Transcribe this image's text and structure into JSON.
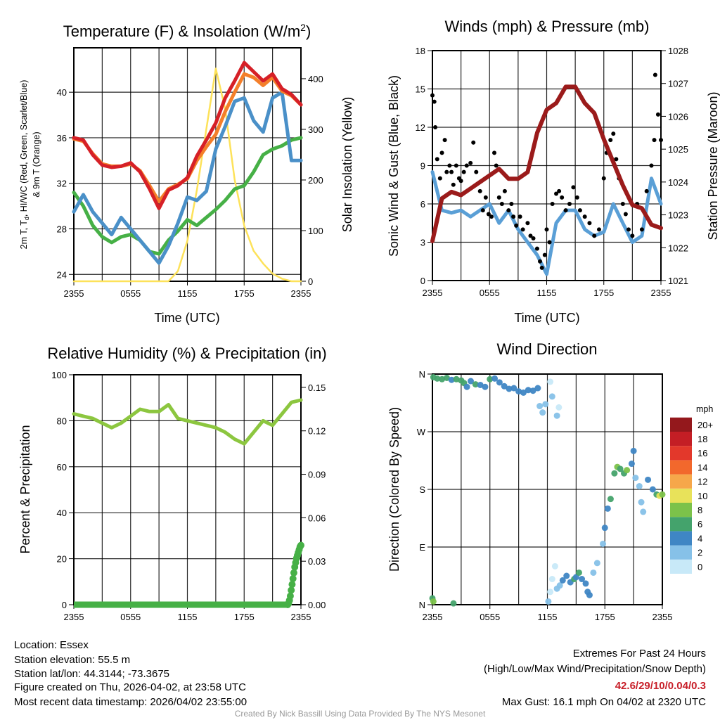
{
  "footer": {
    "location": "Location: Essex",
    "elevation": "Station elevation: 55.5 m",
    "latlon": "Station lat/lon: 44.3144; -73.3675",
    "created": "Figure created on Thu, 2026-04-02, at 23:58 UTC",
    "recent": "Most recent data timestamp: 2026/04/02 23:55:00",
    "extremes_title": "Extremes For Past 24 Hours",
    "extremes_subtitle": "(High/Low/Max Wind/Precipitation/Snow Depth)",
    "extremes_values": "42.6/29/10/0.04/0.3",
    "max_gust": "Max Gust: 16.1 mph On 04/02 at 2320 UTC",
    "credit": "Created By Nick Bassill Using Data Provided By The NYS Mesonet"
  },
  "colors": {
    "temp2m": "#d62027",
    "temp9m": "#f47f2a",
    "dewpoint": "#46b046",
    "hiwc": "#4a90c8",
    "solar": "#fde25a",
    "wind": "#5a9fd6",
    "gust": "#000000",
    "pressure": "#9b1b1b",
    "rh": "#8cc63f",
    "precip": "#46b046"
  },
  "chart_data": [
    {
      "type": "line",
      "title": "Temperature (F) & Insolation (W/m",
      "title_sup": "2",
      "title_end": ")",
      "xlabel": "Time (UTC)",
      "ylabel_line1_a": "2m T, T",
      "ylabel_line1_sub": "d",
      "ylabel_line1_b": ", HI/WC (Red, Green, Scarlet/Blue)",
      "ylabel_line2": "& 9m T (Orange)",
      "ylabel_right": "Solar Insolation (Yellow)",
      "x_hours": [
        0,
        1,
        2,
        3,
        4,
        5,
        6,
        7,
        8,
        9,
        10,
        11,
        12,
        13,
        14,
        15,
        16,
        17,
        18,
        19,
        20,
        21,
        22,
        23,
        24
      ],
      "x_tick_labels": [
        "2355",
        "0555",
        "1155",
        "1755",
        "2355"
      ],
      "ylim": [
        23.4,
        43.9
      ],
      "y_ticks": [
        24,
        28,
        32,
        36,
        40
      ],
      "ylim_right": [
        0,
        461
      ],
      "y_ticks_right": [
        0,
        100,
        200,
        300,
        400
      ],
      "series": [
        {
          "name": "2m T",
          "color_key": "temp2m",
          "axis": "left",
          "values": [
            36,
            35.8,
            34.5,
            33.6,
            33.4,
            33.5,
            33.8,
            33,
            31.5,
            29.8,
            31.4,
            31.8,
            32.5,
            34.4,
            35.8,
            37.3,
            39.5,
            41,
            42.6,
            41.8,
            41,
            41.6,
            40.3,
            39.8,
            38.9
          ]
        },
        {
          "name": "9m T",
          "color_key": "temp9m",
          "axis": "left",
          "values": [
            35.9,
            35.7,
            34.6,
            33.7,
            33.5,
            33.5,
            33.7,
            33.1,
            31.8,
            30.4,
            31.5,
            31.9,
            32.4,
            34,
            35.2,
            36.3,
            38.3,
            40,
            41.6,
            41.3,
            40.6,
            41.3,
            40.1,
            39.7,
            38.9
          ]
        },
        {
          "name": "HI/WC",
          "color_key": "hiwc",
          "axis": "left",
          "values": [
            29.5,
            31,
            29.5,
            28.5,
            27.5,
            29,
            28,
            27,
            26,
            25,
            26.5,
            28.5,
            30.8,
            30.5,
            31.3,
            35,
            37,
            39.2,
            39.5,
            37.5,
            36.5,
            39.5,
            40,
            34,
            34
          ]
        },
        {
          "name": "Td",
          "color_key": "dewpoint",
          "axis": "left",
          "values": [
            31.2,
            30,
            28.3,
            27.3,
            26.8,
            27.3,
            27.5,
            27,
            26,
            25.8,
            27,
            27.8,
            28.8,
            28.3,
            29,
            29.7,
            30.5,
            31.5,
            31.8,
            33,
            34.5,
            35,
            35.3,
            35.8,
            36
          ]
        },
        {
          "name": "Solar",
          "color_key": "solar",
          "axis": "right",
          "values": [
            0,
            0,
            0,
            0,
            0,
            0,
            0,
            0,
            0,
            0,
            0,
            20,
            80,
            180,
            300,
            420,
            340,
            200,
            110,
            60,
            35,
            15,
            5,
            0,
            0
          ]
        }
      ]
    },
    {
      "type": "line",
      "title": "Winds (mph) & Pressure (mb)",
      "xlabel": "Time (UTC)",
      "ylabel": "Sonic Wind & Gust (Blue, Black)",
      "ylabel_right": "Station Pressure (Maroon)",
      "x_hours": [
        0,
        1,
        2,
        3,
        4,
        5,
        6,
        7,
        8,
        9,
        10,
        11,
        12,
        13,
        14,
        15,
        16,
        17,
        18,
        19,
        20,
        21,
        22,
        23,
        24
      ],
      "x_tick_labels": [
        "2355",
        "0555",
        "1155",
        "1755",
        "2355"
      ],
      "ylim": [
        0,
        18
      ],
      "y_ticks": [
        0,
        3,
        6,
        9,
        12,
        15,
        18
      ],
      "ylim_right": [
        1021,
        1028
      ],
      "y_ticks_right": [
        1021,
        1022,
        1023,
        1024,
        1025,
        1026,
        1027,
        1028
      ],
      "series": [
        {
          "name": "Sonic Wind",
          "color_key": "wind",
          "axis": "left",
          "values": [
            8.5,
            5.5,
            5.3,
            5.5,
            5,
            5.5,
            6,
            4.5,
            5.5,
            4,
            3,
            2,
            0.5,
            4.5,
            5.5,
            5.5,
            4,
            3.5,
            3.8,
            6,
            4.5,
            3,
            3.5,
            8,
            6
          ]
        },
        {
          "name": "Pressure",
          "color_key": "pressure",
          "axis": "right",
          "values": [
            1022.2,
            1023.5,
            1023.7,
            1023.6,
            1023.8,
            1024.0,
            1024.2,
            1024.4,
            1024.1,
            1024.1,
            1024.3,
            1025.5,
            1026.2,
            1026.4,
            1026.9,
            1026.9,
            1026.4,
            1026.1,
            1025.3,
            1024.6,
            1023.9,
            1023.3,
            1023.2,
            1022.7,
            1022.6
          ]
        }
      ],
      "gusts": [
        [
          0,
          14.5
        ],
        [
          0.2,
          14
        ],
        [
          0.3,
          12
        ],
        [
          0.5,
          9.5
        ],
        [
          0.8,
          8
        ],
        [
          1,
          10
        ],
        [
          1.3,
          11
        ],
        [
          1.5,
          8.5
        ],
        [
          1.8,
          9
        ],
        [
          2,
          8.5
        ],
        [
          2.2,
          7.5
        ],
        [
          2.5,
          9
        ],
        [
          2.8,
          8
        ],
        [
          3,
          7.8
        ],
        [
          3.3,
          8.5
        ],
        [
          3.6,
          9
        ],
        [
          4,
          9.2
        ],
        [
          4.3,
          10.8
        ],
        [
          4.6,
          8.5
        ],
        [
          5,
          7
        ],
        [
          5.3,
          5.5
        ],
        [
          5.6,
          6.5
        ],
        [
          5.9,
          5.2
        ],
        [
          6.2,
          5
        ],
        [
          6.5,
          10
        ],
        [
          6.7,
          9
        ],
        [
          7,
          6.5
        ],
        [
          7.3,
          6
        ],
        [
          7.6,
          7
        ],
        [
          8,
          5.5
        ],
        [
          8.3,
          6
        ],
        [
          8.5,
          5
        ],
        [
          8.8,
          4.3
        ],
        [
          9.2,
          5
        ],
        [
          9.5,
          4
        ],
        [
          10,
          4.5
        ],
        [
          10.3,
          3.5
        ],
        [
          10.6,
          3.3
        ],
        [
          11,
          2.5
        ],
        [
          11.3,
          1.5
        ],
        [
          11.5,
          1
        ],
        [
          11.8,
          2
        ],
        [
          12,
          4
        ],
        [
          12.3,
          3
        ],
        [
          12.6,
          6
        ],
        [
          13,
          6.8
        ],
        [
          13.3,
          7
        ],
        [
          13.6,
          6.5
        ],
        [
          14,
          5.5
        ],
        [
          14.4,
          6
        ],
        [
          14.8,
          7.3
        ],
        [
          15.2,
          6.5
        ],
        [
          15.5,
          5.5
        ],
        [
          16,
          5
        ],
        [
          16.5,
          4.5
        ],
        [
          17,
          3.5
        ],
        [
          17.5,
          4
        ],
        [
          18,
          8
        ],
        [
          18.3,
          10
        ],
        [
          18.7,
          11
        ],
        [
          19,
          11.5
        ],
        [
          19.3,
          9.5
        ],
        [
          19.6,
          8
        ],
        [
          20,
          6
        ],
        [
          20.3,
          5.2
        ],
        [
          20.6,
          4
        ],
        [
          21,
          3.5
        ],
        [
          21.5,
          6
        ],
        [
          22,
          4
        ],
        [
          22.5,
          7
        ],
        [
          23,
          9
        ],
        [
          23.3,
          11
        ],
        [
          23.4,
          16.1
        ],
        [
          23.7,
          13
        ],
        [
          24,
          11
        ]
      ]
    },
    {
      "type": "line",
      "title": "Relative Humidity (%) & Precipitation (in)",
      "xlabel": "",
      "ylabel": "Percent & Precipitation",
      "x_hours": [
        0,
        1,
        2,
        3,
        4,
        5,
        6,
        7,
        8,
        9,
        10,
        11,
        12,
        13,
        14,
        15,
        16,
        17,
        18,
        19,
        20,
        21,
        22,
        23,
        24
      ],
      "x_tick_labels": [
        "2355",
        "0555",
        "1155",
        "1755",
        "2355"
      ],
      "ylim": [
        0,
        100
      ],
      "y_ticks": [
        0,
        20,
        40,
        60,
        80,
        100
      ],
      "ylim_right": [
        0,
        0.1587
      ],
      "y_ticks_right": [
        "0.00",
        "0.03",
        "0.06",
        "0.09",
        "0.12",
        "0.15"
      ],
      "series": [
        {
          "name": "RH",
          "color_key": "rh",
          "axis": "left",
          "values": [
            83,
            82,
            81,
            79,
            77,
            79,
            82,
            85,
            84,
            84,
            87,
            81,
            80,
            79,
            78,
            77,
            75,
            72,
            70,
            75,
            80,
            78,
            83,
            88,
            89
          ]
        }
      ],
      "precip": {
        "start_hour": 22.6,
        "values": [
          0,
          0.001,
          0.003,
          0.006,
          0.01,
          0.014,
          0.018,
          0.022,
          0.026,
          0.029,
          0.032,
          0.034,
          0.036,
          0.038,
          0.04,
          0.041
        ]
      }
    },
    {
      "type": "scatter",
      "title": "Wind Direction",
      "ylabel": "Direction (Colored By Speed)",
      "x_tick_labels": [
        "2355",
        "0555",
        "1155",
        "1755",
        "2355"
      ],
      "ylim": [
        0,
        360
      ],
      "y_tick_labels": [
        "N",
        "E",
        "S",
        "W",
        "N"
      ],
      "points": [
        [
          0.1,
          355,
          6
        ],
        [
          0.5,
          353,
          6
        ],
        [
          1,
          352,
          6
        ],
        [
          1.5,
          354,
          6
        ],
        [
          2,
          351,
          4
        ],
        [
          2.5,
          352,
          6
        ],
        [
          3,
          350,
          6
        ],
        [
          3.3,
          346,
          6
        ],
        [
          3.6,
          340,
          4
        ],
        [
          4,
          349,
          4
        ],
        [
          4.5,
          344,
          6
        ],
        [
          5,
          343,
          4
        ],
        [
          5.5,
          340,
          4
        ],
        [
          6,
          352,
          6
        ],
        [
          6.5,
          353,
          4
        ],
        [
          7,
          347,
          4
        ],
        [
          7.5,
          341,
          4
        ],
        [
          8,
          337,
          4
        ],
        [
          8.5,
          338,
          4
        ],
        [
          9,
          333,
          4
        ],
        [
          9.5,
          331,
          4
        ],
        [
          10,
          335,
          4
        ],
        [
          10.5,
          334,
          4
        ],
        [
          11,
          338,
          4
        ],
        [
          11.2,
          310,
          2
        ],
        [
          11.5,
          300,
          2
        ],
        [
          11.8,
          313,
          2
        ],
        [
          12.3,
          348,
          0
        ],
        [
          12.5,
          325,
          2
        ],
        [
          13,
          295,
          2
        ],
        [
          13.2,
          308,
          0
        ],
        [
          0,
          10,
          6
        ],
        [
          0.1,
          5,
          8
        ],
        [
          2.2,
          2,
          6
        ],
        [
          12.1,
          5,
          2
        ],
        [
          12.3,
          20,
          0
        ],
        [
          12.5,
          40,
          0
        ],
        [
          12.8,
          60,
          0
        ],
        [
          13,
          25,
          2
        ],
        [
          13.3,
          30,
          2
        ],
        [
          13.6,
          38,
          4
        ],
        [
          14,
          45,
          4
        ],
        [
          14.4,
          35,
          4
        ],
        [
          14.8,
          40,
          6
        ],
        [
          15,
          43,
          4
        ],
        [
          15.3,
          50,
          6
        ],
        [
          15.6,
          40,
          4
        ],
        [
          16,
          33,
          4
        ],
        [
          16.2,
          20,
          4
        ],
        [
          16.4,
          15,
          4
        ],
        [
          16.8,
          50,
          2
        ],
        [
          17.2,
          65,
          2
        ],
        [
          17.8,
          95,
          2
        ],
        [
          18,
          120,
          4
        ],
        [
          18.3,
          150,
          4
        ],
        [
          18.6,
          165,
          6
        ],
        [
          19,
          205,
          6
        ],
        [
          19.3,
          215,
          8
        ],
        [
          19.6,
          212,
          6
        ],
        [
          20,
          205,
          6
        ],
        [
          20.3,
          210,
          8
        ],
        [
          20.8,
          220,
          4
        ],
        [
          21,
          240,
          4
        ],
        [
          21.2,
          198,
          2
        ],
        [
          21.6,
          185,
          2
        ],
        [
          21.8,
          160,
          2
        ],
        [
          22,
          145,
          2
        ],
        [
          22.5,
          195,
          4
        ],
        [
          23,
          180,
          4
        ],
        [
          23.4,
          172,
          6
        ],
        [
          23.7,
          170,
          10
        ],
        [
          24,
          172,
          8
        ]
      ],
      "colorbar": {
        "title": "mph",
        "labels": [
          "0",
          "2",
          "4",
          "6",
          "8",
          "10",
          "12",
          "14",
          "16",
          "18",
          "20+"
        ],
        "colors": [
          "#c8e9f8",
          "#86c1e8",
          "#3f86c4",
          "#44a36c",
          "#7cc24a",
          "#e8e25a",
          "#f6a74a",
          "#f2682c",
          "#e3382b",
          "#c41e25",
          "#94181c"
        ]
      }
    }
  ]
}
